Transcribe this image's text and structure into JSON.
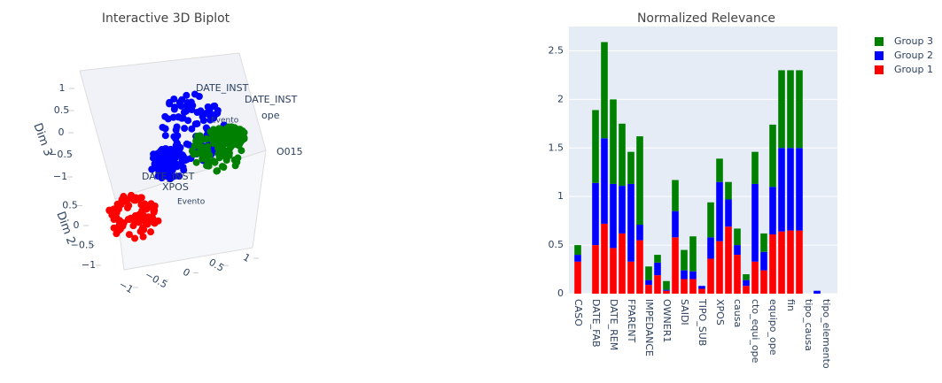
{
  "chart_data": [
    {
      "type": "scatter3d",
      "title": "Interactive 3D Biplot",
      "axes": [
        {
          "title": null,
          "lim": [
            -1,
            1
          ],
          "ticks": [
            {
              "value": -1,
              "label": "−1"
            },
            {
              "value": -0.5,
              "label": "−0.5"
            },
            0,
            0.5,
            1
          ]
        },
        {
          "title": "Dim 2",
          "lim": [
            -1,
            1
          ],
          "ticks": [
            {
              "value": -1,
              "label": "−1"
            },
            {
              "value": -0.5,
              "label": "−0.5"
            },
            0,
            0.5
          ]
        },
        {
          "title": "Dim 3",
          "lim": [
            -1,
            1
          ],
          "ticks": [
            {
              "value": -1,
              "label": "−1"
            },
            {
              "value": -0.5,
              "label": "−0.5"
            },
            0,
            0.5,
            1
          ]
        }
      ],
      "colors": [
        "blue",
        "green",
        "red"
      ],
      "annotations": [
        "DATE_INST",
        "DATE_INST",
        "ope",
        "O015",
        "Evento",
        "DATE_INST",
        "XPOS",
        "Evento"
      ]
    },
    {
      "type": "bar",
      "stacked": true,
      "title": "Normalized Relevance",
      "categories": [
        "CASO",
        null,
        "DATE_FAB",
        null,
        "DATE_REM",
        null,
        "FPARENT",
        null,
        "IMPEDANCE",
        null,
        "OWNER1",
        null,
        "SAIDI",
        null,
        "TIPO_SUB",
        null,
        "XPOS",
        null,
        "causa",
        null,
        "cto_equi_ope",
        null,
        "equipo_ope",
        null,
        "fin",
        null,
        "tipo_causa",
        null,
        "tipo_elemento"
      ],
      "series": [
        {
          "name": "Group 1",
          "color": "#ff0000",
          "values": [
            0.33,
            0,
            0.5,
            0.72,
            0.47,
            0.62,
            0.33,
            0.55,
            0.09,
            0.19,
            0.03,
            0.58,
            0.15,
            0.15,
            0.05,
            0.36,
            0.54,
            0.69,
            0.4,
            0.08,
            0.33,
            0.24,
            0.61,
            0.64,
            0.65,
            0.65,
            0,
            0,
            0
          ]
        },
        {
          "name": "Group 2",
          "color": "#0000ff",
          "values": [
            0.07,
            0,
            0.64,
            0.88,
            0.66,
            0.49,
            0.8,
            0.16,
            0.05,
            0.13,
            0.01,
            0.27,
            0.09,
            0.08,
            0.03,
            0.22,
            0.61,
            0.28,
            0.1,
            0.06,
            0.8,
            0.19,
            0.49,
            0.86,
            0.85,
            0.85,
            0,
            0.03,
            0
          ]
        },
        {
          "name": "Group 3",
          "color": "#008000",
          "values": [
            0.1,
            0,
            0.75,
            0.99,
            0.87,
            0.64,
            0.33,
            0.91,
            0.14,
            0.08,
            0.09,
            0.32,
            0.21,
            0.36,
            0,
            0.36,
            0.24,
            0.18,
            0.17,
            0.06,
            0.33,
            0.19,
            0.64,
            0.8,
            0.8,
            0.8,
            0,
            0,
            0
          ]
        }
      ],
      "ylim": [
        0,
        2.75
      ],
      "yticks": [
        0,
        0.5,
        1,
        1.5,
        2,
        2.5
      ],
      "grid": true,
      "legend": "top-right"
    }
  ]
}
